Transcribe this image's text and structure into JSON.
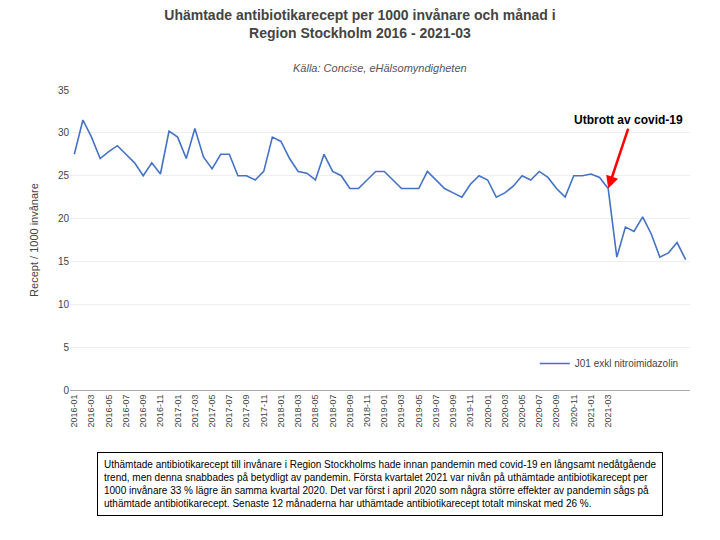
{
  "chart_data": {
    "type": "line",
    "title": "Uhämtade antibiotikarecept per 1000 invånare och månad i\nRegion Stockholm 2016 - 2021-03",
    "subtitle": "Källa: Concise, eHälsomyndigheten",
    "ylabel": "Recept / 1000 invånare",
    "caption": "Uthämtade antibiotikarecept till invånare i Region Stockholms hade innan pandemin med covid-19 en långsamt nedåtgående\ntrend, men denna snabbades på betydligt av pandemin. Första kvartalet 2021 var nivån på uthämtade antibiotikarecept per\n1000 invånare 33 % lägre än samma kvartal 2020. Det var först i april 2020 som några större effekter av pandemin sågs på\nuthämtade antibiotikarecept. Senaste 12 månaderna har uthämtade antibiotikarecept totalt minskat med 26 %.",
    "categories": [
      "2016-01",
      null,
      "2016-03",
      null,
      "2016-05",
      null,
      "2016-07",
      null,
      "2016-09",
      null,
      "2016-11",
      null,
      "2017-01",
      null,
      "2017-03",
      null,
      "2017-05",
      null,
      "2017-07",
      null,
      "2017-09",
      null,
      "2017-11",
      null,
      "2018-01",
      null,
      "2018-03",
      null,
      "2018-05",
      null,
      "2018-07",
      null,
      "2018-09",
      null,
      "2018-11",
      null,
      "2019-01",
      null,
      "2019-03",
      null,
      "2019-05",
      null,
      "2019-07",
      null,
      "2019-09",
      null,
      "2019-11",
      null,
      "2020-01",
      null,
      "2020-03",
      null,
      "2020-05",
      null,
      "2020-07",
      null,
      "2020-09",
      null,
      "2020-11",
      null,
      "2021-01",
      null,
      "2021-03",
      null,
      null,
      null,
      null,
      null,
      null,
      null,
      null,
      null
    ],
    "series": [
      {
        "name": "J01 exkl nitroimidazolin",
        "color": "#4472C4",
        "values": [
          27.5,
          31.5,
          29.5,
          27.0,
          27.8,
          28.5,
          27.5,
          26.5,
          25.0,
          26.5,
          25.2,
          30.2,
          29.5,
          27.0,
          30.5,
          27.2,
          25.8,
          27.5,
          27.5,
          25.0,
          25.0,
          24.5,
          25.5,
          29.5,
          29.0,
          27.0,
          25.5,
          25.3,
          24.5,
          27.5,
          25.5,
          25.0,
          23.5,
          23.5,
          24.5,
          25.5,
          25.5,
          24.5,
          23.5,
          23.5,
          23.5,
          25.5,
          24.5,
          23.5,
          23.0,
          22.5,
          24.0,
          25.0,
          24.5,
          22.5,
          23.0,
          23.8,
          25.0,
          24.5,
          25.5,
          24.8,
          23.5,
          22.5,
          25.0,
          25.0,
          25.2,
          24.8,
          23.5,
          15.5,
          19.0,
          18.5,
          20.2,
          18.2,
          15.5,
          16.0,
          17.2,
          15.2
        ]
      }
    ],
    "ylim": [
      0,
      35
    ],
    "yticks": [
      0,
      5,
      10,
      15,
      20,
      25,
      30,
      35
    ],
    "grid": true,
    "legend": "lower right",
    "annotations": [
      {
        "text": "Utbrott av covid-19",
        "x": 62,
        "y": 23.5,
        "color": "#FF0000"
      }
    ]
  }
}
